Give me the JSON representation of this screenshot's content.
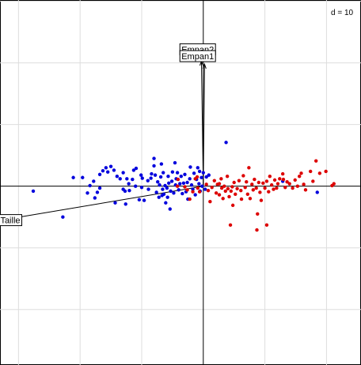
{
  "chart_data": {
    "type": "scatter",
    "title": "",
    "xlabel": "",
    "ylabel": "",
    "grid_label": "d = 10",
    "grid": true,
    "grid_step": 10,
    "xlim": [
      -33,
      25.6
    ],
    "ylim": [
      -29,
      30.2
    ],
    "axes_through_origin": true,
    "colors": {
      "blue": "#0000dd",
      "red": "#dd0000",
      "arrow": "#000000",
      "grid": "#dddddd"
    },
    "arrows": [
      {
        "label": "Empan2",
        "x": 0.2,
        "y": 19.8,
        "label_x": -3.8,
        "label_y": 22.2
      },
      {
        "label": "Empan1",
        "x": -0.3,
        "y": 20.3,
        "label_x": -3.8,
        "label_y": 21.1
      },
      {
        "label": "Taille",
        "x": -32.8,
        "y": -5.5,
        "label_x": -33.2,
        "label_y": -5.5
      }
    ],
    "series": [
      {
        "color": "blue",
        "points": [
          [
            -27.6,
            -0.8
          ],
          [
            -22.8,
            -5.0
          ],
          [
            -21.1,
            1.4
          ],
          [
            -19.6,
            1.4
          ],
          [
            -18.8,
            -1.1
          ],
          [
            -18.4,
            0.1
          ],
          [
            -17.8,
            0.8
          ],
          [
            -17.6,
            -1.9
          ],
          [
            -17.2,
            -1.0
          ],
          [
            -16.8,
            -0.3
          ],
          [
            -16.8,
            1.9
          ],
          [
            -16.3,
            2.5
          ],
          [
            -15.8,
            3.0
          ],
          [
            -15.5,
            2.3
          ],
          [
            -15.0,
            3.2
          ],
          [
            -14.5,
            2.6
          ],
          [
            -14.3,
            -2.7
          ],
          [
            -14.0,
            1.6
          ],
          [
            -13.5,
            1.2
          ],
          [
            -13.0,
            -0.5
          ],
          [
            -13.0,
            2.2
          ],
          [
            -12.7,
            -0.8
          ],
          [
            -12.6,
            -2.9
          ],
          [
            -12.4,
            1.2
          ],
          [
            -12.1,
            0.4
          ],
          [
            -12.0,
            -0.7
          ],
          [
            -11.5,
            1.1
          ],
          [
            -11.3,
            2.6
          ],
          [
            -11.0,
            0.0
          ],
          [
            -10.9,
            2.9
          ],
          [
            -10.4,
            -2.2
          ],
          [
            -10.1,
            1.8
          ],
          [
            -10.0,
            -0.2
          ],
          [
            -9.9,
            1.3
          ],
          [
            -9.6,
            -2.3
          ],
          [
            -9.0,
            0.9
          ],
          [
            -8.9,
            -0.5
          ],
          [
            -8.5,
            1.3
          ],
          [
            -8.4,
            2.0
          ],
          [
            -8.0,
            4.5
          ],
          [
            -8.0,
            3.3
          ],
          [
            -7.8,
            1.8
          ],
          [
            -7.6,
            -1.0
          ],
          [
            -7.4,
            0.7
          ],
          [
            -7.2,
            -1.8
          ],
          [
            -7.1,
            0.2
          ],
          [
            -6.9,
            1.5
          ],
          [
            -6.8,
            3.6
          ],
          [
            -6.7,
            -1.5
          ],
          [
            -6.6,
            -0.5
          ],
          [
            -6.5,
            2.2
          ],
          [
            -6.4,
            -1.3
          ],
          [
            -6.2,
            0.1
          ],
          [
            -6.1,
            -2.7
          ],
          [
            -5.9,
            -0.3
          ],
          [
            -5.8,
            -1.8
          ],
          [
            -5.7,
            1.6
          ],
          [
            -5.6,
            0.5
          ],
          [
            -5.4,
            -3.7
          ],
          [
            -5.3,
            -0.8
          ],
          [
            -5.1,
            0.8
          ],
          [
            -5.0,
            2.3
          ],
          [
            -4.8,
            -1.1
          ],
          [
            -4.6,
            3.8
          ],
          [
            -4.5,
            0.2
          ],
          [
            -4.4,
            1.2
          ],
          [
            -4.2,
            2.2
          ],
          [
            -4.0,
            -0.6
          ],
          [
            -3.8,
            0.4
          ],
          [
            -3.6,
            1.6
          ],
          [
            -3.4,
            -1.2
          ],
          [
            -3.2,
            0.5
          ],
          [
            -3.0,
            1.9
          ],
          [
            -2.8,
            -0.9
          ],
          [
            -2.6,
            0.6
          ],
          [
            -2.5,
            -2.1
          ],
          [
            -2.2,
            1.2
          ],
          [
            -2.1,
            3.1
          ],
          [
            -1.9,
            0.2
          ],
          [
            -1.7,
            -0.5
          ],
          [
            -1.5,
            2.1
          ],
          [
            -1.3,
            -1.4
          ],
          [
            -1.1,
            1.1
          ],
          [
            -0.9,
            3.0
          ],
          [
            -0.7,
            0.4
          ],
          [
            -0.6,
            2.4
          ],
          [
            -0.5,
            -0.8
          ],
          [
            -0.3,
            1.4
          ],
          [
            -0.2,
            0.0
          ],
          [
            0.0,
            2.2
          ],
          [
            0.3,
            -0.5
          ],
          [
            0.5,
            1.5
          ],
          [
            0.9,
            1.8
          ],
          [
            3.7,
            7.1
          ],
          [
            12.9,
            0.8
          ],
          [
            18.5,
            -1.0
          ]
        ]
      },
      {
        "color": "red",
        "points": [
          [
            -4.1,
            1.1
          ],
          [
            -3.0,
            -0.1
          ],
          [
            -2.6,
            -0.6
          ],
          [
            -2.2,
            -2.1
          ],
          [
            -1.7,
            -0.9
          ],
          [
            -1.3,
            1.2
          ],
          [
            -0.9,
            -0.3
          ],
          [
            -0.6,
            -0.9
          ],
          [
            0.5,
            0.3
          ],
          [
            0.8,
            -0.7
          ],
          [
            1.1,
            -2.5
          ],
          [
            1.4,
            -0.2
          ],
          [
            1.8,
            0.9
          ],
          [
            2.1,
            -1.1
          ],
          [
            2.3,
            0.3
          ],
          [
            2.6,
            -1.4
          ],
          [
            2.9,
            1.2
          ],
          [
            3.0,
            -0.3
          ],
          [
            3.2,
            -2.0
          ],
          [
            3.4,
            0.0
          ],
          [
            3.6,
            -0.8
          ],
          [
            3.9,
            1.6
          ],
          [
            4.0,
            -0.4
          ],
          [
            4.2,
            -1.7
          ],
          [
            4.5,
            -0.8
          ],
          [
            4.7,
            -0.1
          ],
          [
            4.8,
            -3.1
          ],
          [
            5.0,
            0.6
          ],
          [
            5.2,
            -1.3
          ],
          [
            5.5,
            -0.4
          ],
          [
            5.8,
            0.9
          ],
          [
            6.1,
            -0.7
          ],
          [
            6.2,
            -2.1
          ],
          [
            6.5,
            1.7
          ],
          [
            6.8,
            -0.2
          ],
          [
            7.0,
            0.7
          ],
          [
            7.2,
            -1.3
          ],
          [
            7.4,
            3.0
          ],
          [
            7.6,
            -2.0
          ],
          [
            7.9,
            0.3
          ],
          [
            8.1,
            -0.6
          ],
          [
            8.3,
            1.1
          ],
          [
            8.6,
            -0.3
          ],
          [
            8.8,
            -4.5
          ],
          [
            9.0,
            0.6
          ],
          [
            9.2,
            -1.0
          ],
          [
            9.4,
            -2.3
          ],
          [
            9.7,
            0.5
          ],
          [
            10.0,
            -0.3
          ],
          [
            10.3,
            0.8
          ],
          [
            10.6,
            -0.9
          ],
          [
            10.8,
            1.6
          ],
          [
            11.1,
            0.2
          ],
          [
            11.4,
            -0.5
          ],
          [
            11.6,
            1.0
          ],
          [
            11.9,
            -0.3
          ],
          [
            12.1,
            0.4
          ],
          [
            12.4,
            1.2
          ],
          [
            12.9,
            2.0
          ],
          [
            13.0,
            1.1
          ],
          [
            13.3,
            -0.2
          ],
          [
            13.6,
            0.7
          ],
          [
            14.0,
            0.4
          ],
          [
            14.5,
            -0.3
          ],
          [
            14.9,
            1.0
          ],
          [
            15.3,
            0.0
          ],
          [
            15.6,
            1.6
          ],
          [
            15.9,
            2.1
          ],
          [
            16.3,
            0.3
          ],
          [
            16.6,
            -0.6
          ],
          [
            17.4,
            2.4
          ],
          [
            17.8,
            0.8
          ],
          [
            18.3,
            4.1
          ],
          [
            18.9,
            2.1
          ],
          [
            19.9,
            2.4
          ],
          [
            20.9,
            0.1
          ],
          [
            21.2,
            0.4
          ],
          [
            -4.2,
            0.0
          ],
          [
            2.6,
            0.4
          ],
          [
            -1.0,
            1.5
          ],
          [
            8.7,
            -7.1
          ],
          [
            10.3,
            -6.3
          ],
          [
            4.4,
            -6.3
          ]
        ]
      }
    ]
  }
}
